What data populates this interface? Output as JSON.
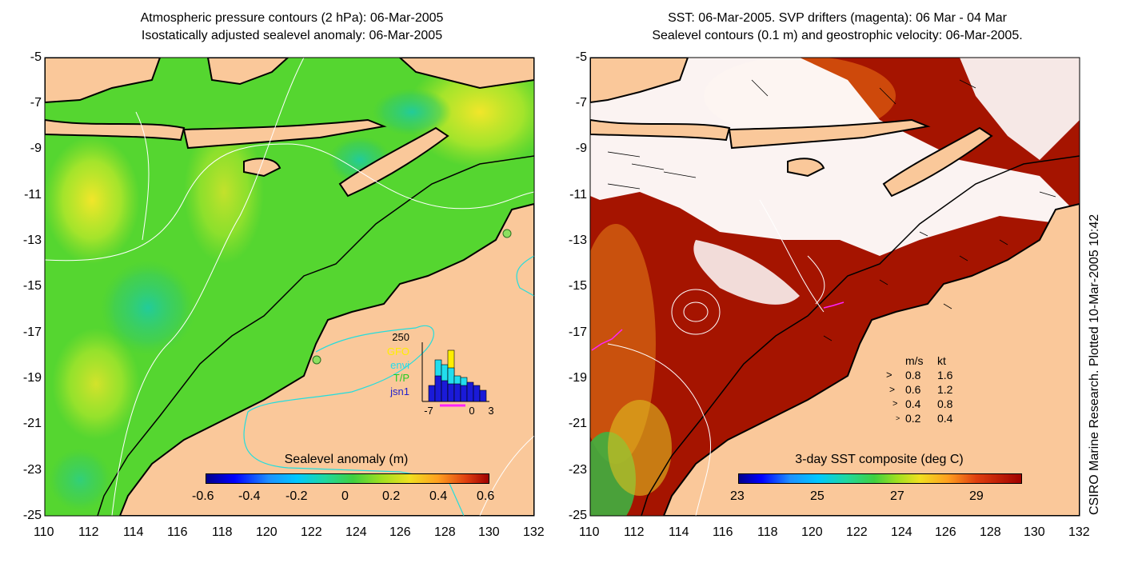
{
  "left_panel": {
    "title_line1": "Atmospheric pressure contours (2 hPa): 06-Mar-2005",
    "title_line2": "Isostatically adjusted sealevel anomaly: 06-Mar-2005",
    "colorbar": {
      "title": "Sealevel anomaly (m)",
      "ticks": [
        "-0.6",
        "-0.4",
        "-0.2",
        "0",
        "0.2",
        "0.4",
        "0.6"
      ]
    },
    "inset": {
      "ymax_label": "250",
      "legend": [
        {
          "name": "GFO",
          "color": "#ffee00"
        },
        {
          "name": "envi",
          "color": "#22ddee"
        },
        {
          "name": "T/P",
          "color": "#22cc22"
        },
        {
          "name": "jsn1",
          "color": "#2222cc"
        }
      ],
      "x_ticks": [
        "-7",
        "0",
        "3"
      ]
    }
  },
  "right_panel": {
    "title_line1": "SST: 06-Mar-2005. SVP drifters (magenta): 06 Mar - 04 Mar",
    "title_line2": "Sealevel contours (0.1 m) and geostrophic velocity: 06-Mar-2005.",
    "colorbar": {
      "title": "3-day SST composite (deg C)",
      "ticks": [
        "23",
        "25",
        "27",
        "29"
      ]
    },
    "velocity_legend": {
      "header_ms": "m/s",
      "header_kt": "kt",
      "rows": [
        {
          "ms": "0.8",
          "kt": "1.6"
        },
        {
          "ms": "0.6",
          "kt": "1.2"
        },
        {
          "ms": "0.4",
          "kt": "0.8"
        },
        {
          "ms": "0.2",
          "kt": "0.4"
        }
      ]
    }
  },
  "axes": {
    "y_ticks": [
      "-5",
      "-7",
      "-9",
      "-11",
      "-13",
      "-15",
      "-17",
      "-19",
      "-21",
      "-23",
      "-25"
    ],
    "x_ticks": [
      "110",
      "112",
      "114",
      "116",
      "118",
      "120",
      "122",
      "124",
      "126",
      "128",
      "130",
      "132"
    ]
  },
  "side_label": "CSIRO Marine Research. Plotted 10-Mar-2005 10:42",
  "colors": {
    "land": "#fac89a",
    "ocean_green": "#55d630",
    "sst_red": "#a51400",
    "cloud": "#ffffff"
  }
}
